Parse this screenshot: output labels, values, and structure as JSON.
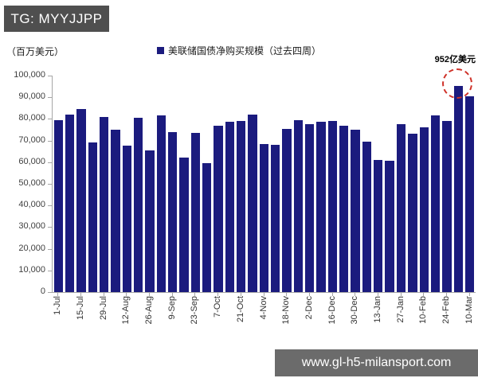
{
  "header": {
    "tg_label": "TG: MYYJJPP"
  },
  "footer": {
    "website": "www.gl-h5-milansport.com"
  },
  "theme": {
    "bar_color": "#1b1b7e",
    "annotation_circle_color": "#cf3128",
    "tg_box_bg": "#4f4f4f",
    "footer_bg": "#6b6b6b"
  },
  "chart_data": {
    "type": "bar",
    "title": "美联储国债净购买规模（过去四周）",
    "legend": [
      "美联储国债净购买规模（过去四周）"
    ],
    "legend_position": "top",
    "ylabel": "（百万美元）",
    "ylim": [
      0,
      100000
    ],
    "ytick_step": 10000,
    "ytick_labels": [
      "0",
      "10,000",
      "20,000",
      "30,000",
      "40,000",
      "50,000",
      "60,000",
      "70,000",
      "80,000",
      "90,000",
      "100,000"
    ],
    "grid": false,
    "xtick_rotation": 90,
    "categories": [
      "1-Jul",
      "",
      "15-Jul",
      "",
      "29-Jul",
      "",
      "12-Aug",
      "",
      "26-Aug",
      "",
      "9-Sep",
      "",
      "23-Sep",
      "",
      "7-Oct",
      "",
      "21-Oct",
      "",
      "4-Nov",
      "",
      "18-Nov",
      "",
      "2-Dec",
      "",
      "16-Dec",
      "",
      "30-Dec",
      "",
      "13-Jan",
      "",
      "27-Jan",
      "",
      "10-Feb",
      "",
      "24-Feb",
      "",
      "10-Mar"
    ],
    "values": [
      79500,
      82000,
      84500,
      69000,
      81000,
      75000,
      67500,
      80500,
      65500,
      81500,
      74000,
      62000,
      73500,
      59500,
      77000,
      78500,
      79000,
      82000,
      68500,
      68000,
      75500,
      79500,
      77500,
      78500,
      79000,
      77000,
      75000,
      69500,
      61000,
      60500,
      77500,
      73000,
      76000,
      81500,
      79000,
      95200,
      90500
    ],
    "annotations": [
      {
        "text": "952亿美元",
        "bar_index": 35,
        "value_million_usd": 95200,
        "style": "red-dashed-circle"
      }
    ]
  }
}
